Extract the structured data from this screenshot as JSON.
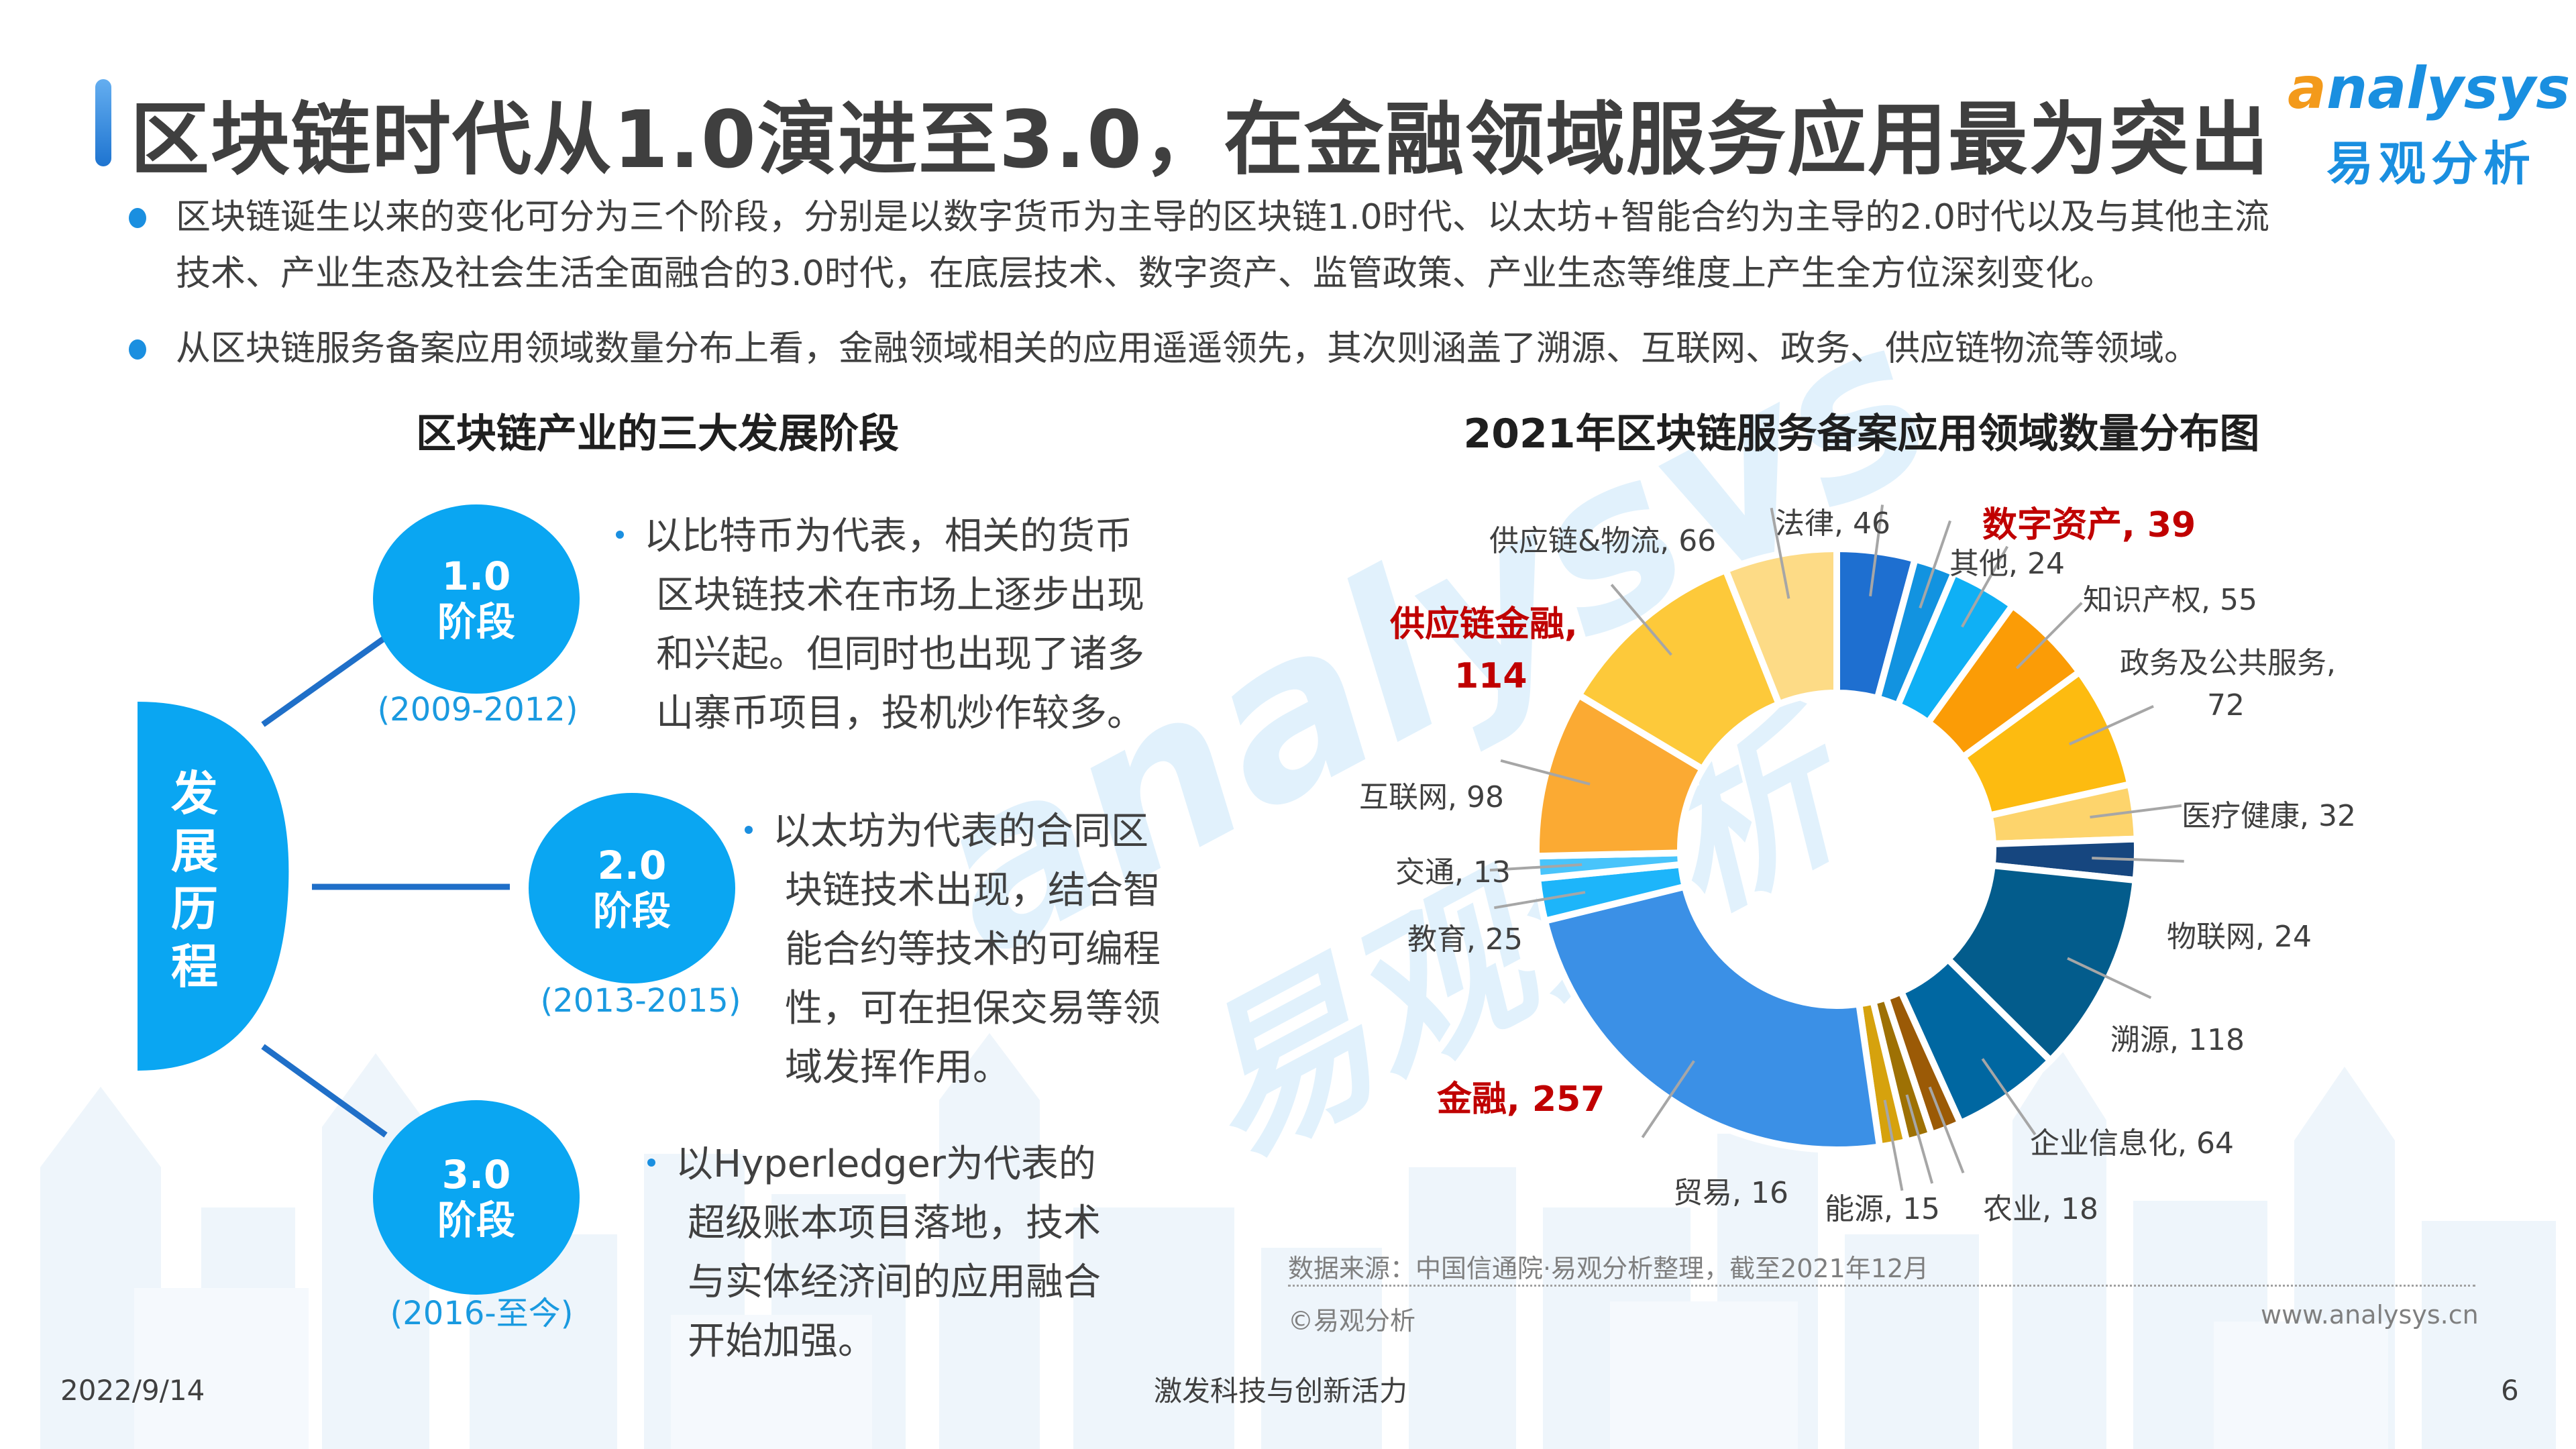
{
  "header": {
    "title": "区块链时代从1.0演进至3.0，在金融领域服务应用最为突出",
    "logo_en_first": "a",
    "logo_en_rest": "nalysys",
    "logo_cn": "易观分析"
  },
  "bullets": [
    {
      "lines": [
        "区块链诞生以来的变化可分为三个阶段，分别是以数字货币为主导的区块链1.0时代、以太坊+智能合约为主导的2.0时代以及与其他主流",
        "技术、产业生态及社会生活全面融合的3.0时代，在底层技术、数字资产、监管政策、产业生态等维度上产生全方位深刻变化。"
      ]
    },
    {
      "lines": [
        "从区块链服务备案应用领域数量分布上看，金融领域相关的应用遥遥领先，其次则涵盖了溯源、互联网、政务、供应链物流等领域。"
      ]
    }
  ],
  "left_section": {
    "title": "区块链产业的三大发展阶段",
    "root_label": [
      "发",
      "展",
      "历",
      "程"
    ],
    "stages": [
      {
        "version": "1.0",
        "label": "阶段",
        "years": "(2009-2012)",
        "desc": [
          "以比特币为代表，相关的货币",
          "区块链技术在市场上逐步出现",
          "和兴起。但同时也出现了诸多",
          "山寨币项目，投机炒作较多。"
        ]
      },
      {
        "version": "2.0",
        "label": "阶段",
        "years": "(2013-2015)",
        "desc": [
          "以太坊为代表的合同区",
          "块链技术出现，结合智",
          "能合约等技术的可编程",
          "性，可在担保交易等领",
          "域发挥作用。"
        ]
      },
      {
        "version": "3.0",
        "label": "阶段",
        "years": "(2016-至今)",
        "desc": [
          "以Hyperledger为代表的",
          "超级账本项目落地，技术",
          "与实体经济间的应用融合",
          "开始加强。"
        ]
      }
    ],
    "colors": {
      "circle": "#0aa6f2",
      "connector": "#1f6fc8",
      "years": "#1a9ae0"
    }
  },
  "chart_data": {
    "type": "pie",
    "subtype": "donut",
    "title": "2021年区块链服务备案应用领域数量分布图",
    "start_angle": "12 o'clock, clockwise",
    "categories": [
      "法律",
      "其他",
      "数字资产",
      "知识产权",
      "政务及公共服务",
      "医疗健康",
      "物联网",
      "溯源",
      "企业信息化",
      "农业",
      "能源",
      "贸易",
      "金融",
      "教育",
      "交通",
      "互联网",
      "供应链金融",
      "供应链&物流"
    ],
    "values": [
      46,
      24,
      39,
      55,
      72,
      32,
      24,
      118,
      64,
      18,
      15,
      16,
      257,
      25,
      13,
      98,
      114,
      66
    ],
    "colors": [
      "#1e6fd0",
      "#1293e0",
      "#0fb0f5",
      "#fb9c06",
      "#fdbb10",
      "#fdd46c",
      "#16467f",
      "#035c8c",
      "#0067a1",
      "#9b5a06",
      "#9e7104",
      "#d6a20d",
      "#3b90e6",
      "#1db5fa",
      "#48c4fb",
      "#fbaa33",
      "#fdc93a",
      "#fddb86"
    ],
    "labels": [
      {
        "text": "法律, 46",
        "highlight": false
      },
      {
        "text": "其他, 24",
        "highlight": false
      },
      {
        "text": "数字资产, 39",
        "highlight": true
      },
      {
        "text": "知识产权, 55",
        "highlight": false
      },
      {
        "text": "政务及公共服务,",
        "text2": "72",
        "highlight": false
      },
      {
        "text": "医疗健康, 32",
        "highlight": false
      },
      {
        "text": "物联网, 24",
        "highlight": false
      },
      {
        "text": "溯源, 118",
        "highlight": false
      },
      {
        "text": "企业信息化, 64",
        "highlight": false
      },
      {
        "text": "农业, 18",
        "highlight": false
      },
      {
        "text": "能源, 15",
        "highlight": false
      },
      {
        "text": "贸易, 16",
        "highlight": false
      },
      {
        "text": "金融, 257",
        "highlight": true
      },
      {
        "text": "教育, 25",
        "highlight": false
      },
      {
        "text": "交通, 13",
        "highlight": false
      },
      {
        "text": "互联网, 98",
        "highlight": false
      },
      {
        "text": "供应链金融,",
        "text2": "114",
        "highlight": true
      },
      {
        "text": "供应链&物流, 66",
        "highlight": false
      }
    ],
    "source": "数据来源：中国信通院·易观分析整理，截至2021年12月",
    "copyright": "©易观分析",
    "website": "www.analysys.cn",
    "highlight_color": "#c00000"
  },
  "watermark": {
    "en": "analysys",
    "cn": "易观分析"
  },
  "footer": {
    "date": "2022/9/14",
    "slogan": "激发科技与创新活力",
    "page": "6"
  }
}
